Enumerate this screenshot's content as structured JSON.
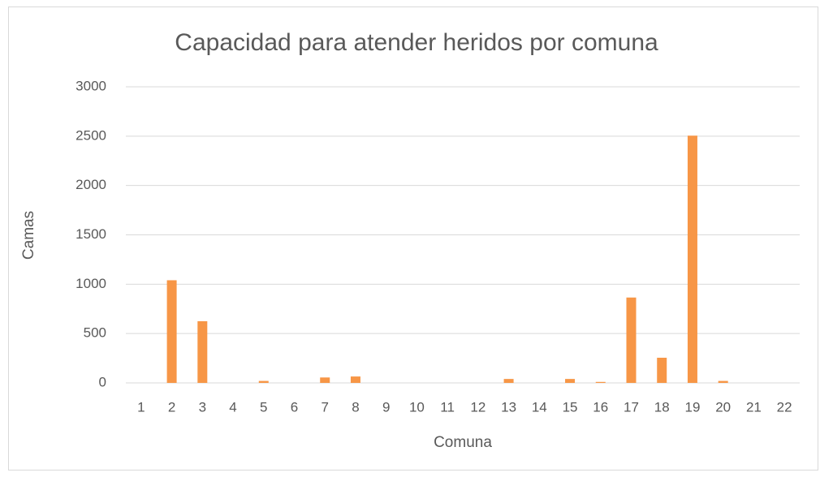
{
  "chart_data": {
    "type": "bar",
    "title": "Capacidad para atender heridos por comuna",
    "x_label": "Comuna",
    "y_label": "Camas",
    "categories": [
      "1",
      "2",
      "3",
      "4",
      "5",
      "6",
      "7",
      "8",
      "9",
      "10",
      "11",
      "12",
      "13",
      "14",
      "15",
      "16",
      "17",
      "18",
      "19",
      "20",
      "21",
      "22"
    ],
    "values": [
      0,
      1040,
      625,
      0,
      20,
      0,
      55,
      65,
      0,
      0,
      0,
      0,
      40,
      0,
      40,
      10,
      865,
      255,
      2505,
      20,
      0,
      0
    ],
    "color": "#f79646",
    "ylim": [
      0,
      3000
    ],
    "yticks": [
      0,
      500,
      1000,
      1500,
      2000,
      2500,
      3000
    ],
    "grid": true
  }
}
